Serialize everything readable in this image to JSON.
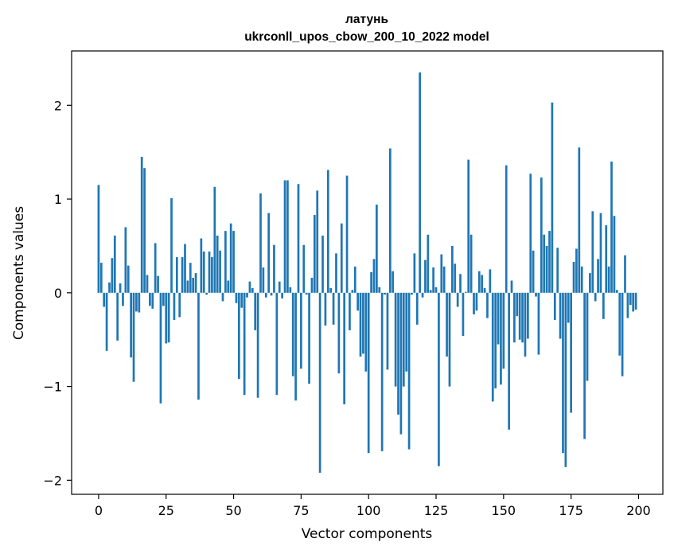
{
  "chart_data": {
    "type": "bar",
    "title_line1": "латунь",
    "title_line2": "ukrconll_upos_cbow_200_10_2022 model",
    "xlabel": "Vector components",
    "ylabel": "Components values",
    "xlim": [
      -10,
      209
    ],
    "ylim": [
      -2.15,
      2.58
    ],
    "xticks": [
      0,
      25,
      50,
      75,
      100,
      125,
      150,
      175,
      200
    ],
    "yticks": [
      -2,
      -1,
      0,
      1,
      2
    ],
    "ytick_labels": [
      "−2",
      "−1",
      "0",
      "1",
      "2"
    ],
    "bar_color": "#1f77b4",
    "grid": false,
    "values": [
      1.15,
      0.32,
      -0.15,
      -0.62,
      0.11,
      0.37,
      0.61,
      -0.51,
      0.1,
      -0.14,
      0.7,
      0.29,
      -0.69,
      -0.95,
      -0.2,
      -0.21,
      1.45,
      1.33,
      0.19,
      -0.14,
      -0.17,
      0.53,
      0.18,
      -1.18,
      -0.14,
      -0.54,
      -0.53,
      1.01,
      -0.29,
      0.38,
      -0.26,
      0.38,
      0.52,
      0.13,
      0.32,
      0.16,
      0.21,
      -1.14,
      0.58,
      0.44,
      -0.02,
      0.44,
      0.38,
      1.13,
      0.61,
      0.45,
      -0.09,
      0.66,
      0.13,
      0.74,
      0.66,
      -0.11,
      -0.92,
      -0.16,
      -1.09,
      -0.05,
      0.12,
      0.05,
      -0.4,
      -1.12,
      1.06,
      0.27,
      -0.05,
      0.85,
      -0.03,
      0.51,
      -1.09,
      0.12,
      -0.06,
      1.2,
      1.2,
      0.06,
      -0.89,
      -1.15,
      1.16,
      -0.81,
      0.51,
      -0.02,
      -0.97,
      0.16,
      0.83,
      1.09,
      -1.92,
      0.61,
      -0.35,
      1.31,
      0.05,
      -0.34,
      0.42,
      -0.86,
      0.74,
      -1.19,
      1.25,
      -0.4,
      0.03,
      0.28,
      -0.19,
      -0.68,
      -0.65,
      -0.84,
      -1.71,
      0.22,
      0.36,
      0.94,
      0.06,
      -1.69,
      -0.02,
      -0.82,
      1.54,
      0.23,
      -1.0,
      -1.3,
      -1.51,
      -1.0,
      -0.84,
      -1.67,
      -0.02,
      0.42,
      -0.34,
      2.35,
      -0.05,
      0.35,
      0.62,
      0.03,
      0.27,
      0.06,
      -1.85,
      0.41,
      0.28,
      -0.68,
      -1.0,
      0.5,
      0.31,
      -0.15,
      0.2,
      -0.46,
      0.01,
      1.42,
      0.62,
      -0.23,
      -0.19,
      0.23,
      0.19,
      0.05,
      -0.27,
      0.25,
      -1.16,
      -1.02,
      -0.55,
      -0.98,
      -0.81,
      1.36,
      -1.46,
      0.13,
      -0.53,
      -0.25,
      -0.5,
      -0.53,
      -0.68,
      -0.49,
      1.27,
      0.45,
      -0.04,
      -0.66,
      1.23,
      0.62,
      0.5,
      0.66,
      2.03,
      -0.29,
      0.48,
      -0.49,
      -1.71,
      -1.86,
      -0.32,
      -1.28,
      0.33,
      0.47,
      1.55,
      0.28,
      -1.56,
      -0.94,
      0.21,
      0.87,
      -0.09,
      0.36,
      0.85,
      -0.28,
      0.72,
      0.28,
      1.4,
      0.82,
      0.03,
      -0.67,
      -0.89,
      0.4,
      -0.27,
      -0.13,
      -0.2,
      -0.18
    ]
  }
}
